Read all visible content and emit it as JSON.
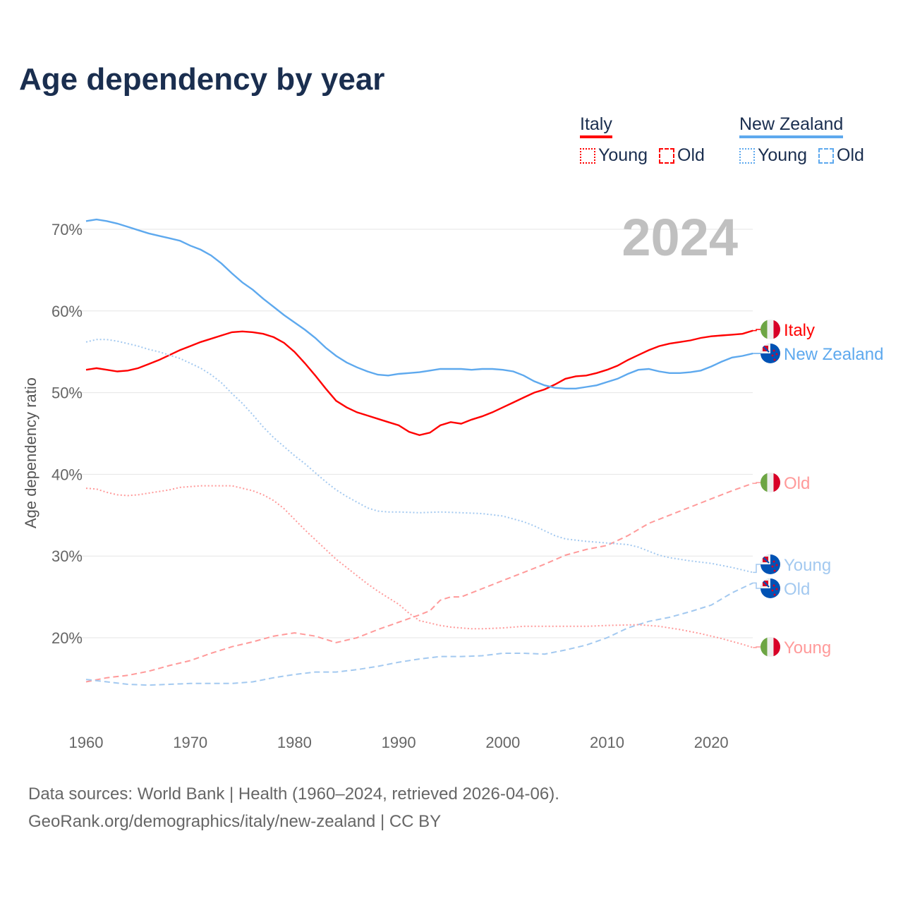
{
  "title": "Age dependency by year",
  "legend": {
    "groups": [
      {
        "name": "Italy",
        "color": "#ff0000",
        "light": "#ff9a9a",
        "items": [
          "Young",
          "Old"
        ]
      },
      {
        "name": "New Zealand",
        "color": "#5ea9ee",
        "light": "#a3c9f0",
        "items": [
          "Young",
          "Old"
        ]
      }
    ]
  },
  "footer": {
    "line1": "Data sources: World Bank | Health (1960–2024, retrieved 2026-04-06).",
    "line2": "GeoRank.org/demographics/italy/new-zealand | CC BY"
  },
  "chart_data": {
    "type": "line",
    "title": "Age dependency by year",
    "big_year_label": "2024",
    "xlabel": "",
    "ylabel": "Age dependency ratio",
    "xlim": [
      1960,
      2024
    ],
    "ylim": [
      10,
      72
    ],
    "x_ticks": [
      "1960",
      "1970",
      "1980",
      "1990",
      "2000",
      "2010",
      "2020"
    ],
    "y_ticks": [
      "20%",
      "30%",
      "40%",
      "50%",
      "60%",
      "70%"
    ],
    "grid": true,
    "series": [
      {
        "name": "Italy",
        "country": "Italy",
        "label": "Italy",
        "style": "solid",
        "color": "#ff0000",
        "x": [
          1960,
          1961,
          1962,
          1963,
          1964,
          1965,
          1966,
          1967,
          1968,
          1969,
          1970,
          1971,
          1972,
          1973,
          1974,
          1975,
          1976,
          1977,
          1978,
          1979,
          1980,
          1981,
          1982,
          1983,
          1984,
          1985,
          1986,
          1987,
          1988,
          1989,
          1990,
          1991,
          1992,
          1993,
          1994,
          1995,
          1996,
          1997,
          1998,
          1999,
          2000,
          2001,
          2002,
          2003,
          2004,
          2005,
          2006,
          2007,
          2008,
          2009,
          2010,
          2011,
          2012,
          2013,
          2014,
          2015,
          2016,
          2017,
          2018,
          2019,
          2020,
          2021,
          2022,
          2023,
          2024
        ],
        "y": [
          52.8,
          53.0,
          52.8,
          52.6,
          52.7,
          53.0,
          53.5,
          54.0,
          54.6,
          55.2,
          55.7,
          56.2,
          56.6,
          57.0,
          57.4,
          57.5,
          57.4,
          57.2,
          56.8,
          56.1,
          55.0,
          53.6,
          52.1,
          50.5,
          49.0,
          48.2,
          47.6,
          47.2,
          46.8,
          46.4,
          46.0,
          45.2,
          44.8,
          45.1,
          46.0,
          46.4,
          46.2,
          46.7,
          47.1,
          47.6,
          48.2,
          48.8,
          49.4,
          50.0,
          50.4,
          51.0,
          51.7,
          52.0,
          52.1,
          52.4,
          52.8,
          53.3,
          54.0,
          54.6,
          55.2,
          55.7,
          56.0,
          56.2,
          56.4,
          56.7,
          56.9,
          57.0,
          57.1,
          57.2,
          57.6
        ]
      },
      {
        "name": "New Zealand",
        "country": "New Zealand",
        "label": "New Zealand",
        "style": "solid",
        "color": "#5ea9ee",
        "x": [
          1960,
          1961,
          1962,
          1963,
          1964,
          1965,
          1966,
          1967,
          1968,
          1969,
          1970,
          1971,
          1972,
          1973,
          1974,
          1975,
          1976,
          1977,
          1978,
          1979,
          1980,
          1981,
          1982,
          1983,
          1984,
          1985,
          1986,
          1987,
          1988,
          1989,
          1990,
          1991,
          1992,
          1993,
          1994,
          1995,
          1996,
          1997,
          1998,
          1999,
          2000,
          2001,
          2002,
          2003,
          2004,
          2005,
          2006,
          2007,
          2008,
          2009,
          2010,
          2011,
          2012,
          2013,
          2014,
          2015,
          2016,
          2017,
          2018,
          2019,
          2020,
          2021,
          2022,
          2023,
          2024
        ],
        "y": [
          71.0,
          71.2,
          71.0,
          70.7,
          70.3,
          69.9,
          69.5,
          69.2,
          68.9,
          68.6,
          68.0,
          67.5,
          66.8,
          65.8,
          64.6,
          63.5,
          62.6,
          61.5,
          60.5,
          59.5,
          58.6,
          57.7,
          56.7,
          55.5,
          54.5,
          53.7,
          53.1,
          52.6,
          52.2,
          52.1,
          52.3,
          52.4,
          52.5,
          52.7,
          52.9,
          52.9,
          52.9,
          52.8,
          52.9,
          52.9,
          52.8,
          52.6,
          52.1,
          51.4,
          50.9,
          50.6,
          50.5,
          50.5,
          50.7,
          50.9,
          51.3,
          51.7,
          52.3,
          52.8,
          52.9,
          52.6,
          52.4,
          52.4,
          52.5,
          52.7,
          53.2,
          53.8,
          54.3,
          54.5,
          54.8
        ]
      },
      {
        "name": "Italy Old",
        "country": "Italy",
        "label": "Old",
        "style": "dashed",
        "color": "#ff9a9a",
        "x": [
          1960,
          1962,
          1964,
          1966,
          1968,
          1970,
          1972,
          1974,
          1976,
          1978,
          1980,
          1982,
          1984,
          1986,
          1988,
          1990,
          1992,
          1993,
          1994,
          1995,
          1996,
          1998,
          2000,
          2002,
          2004,
          2006,
          2008,
          2010,
          2012,
          2014,
          2016,
          2018,
          2020,
          2022,
          2024
        ],
        "y": [
          14.6,
          15.1,
          15.4,
          15.9,
          16.6,
          17.2,
          18.1,
          18.9,
          19.5,
          20.2,
          20.6,
          20.2,
          19.4,
          20.0,
          21.0,
          21.9,
          22.8,
          23.3,
          24.6,
          25.0,
          25.0,
          26.0,
          27.0,
          28.0,
          29.0,
          30.1,
          30.8,
          31.3,
          32.5,
          34.0,
          35.0,
          36.0,
          37.0,
          38.0,
          38.9
        ]
      },
      {
        "name": "New Zealand Young",
        "country": "New Zealand",
        "label": "Young",
        "style": "dotted",
        "color": "#a3c9f0",
        "x": [
          1960,
          1961,
          1962,
          1963,
          1964,
          1965,
          1966,
          1967,
          1968,
          1969,
          1970,
          1971,
          1972,
          1973,
          1974,
          1975,
          1976,
          1977,
          1978,
          1979,
          1980,
          1981,
          1982,
          1983,
          1984,
          1985,
          1986,
          1987,
          1988,
          1989,
          1990,
          1992,
          1994,
          1996,
          1998,
          2000,
          2002,
          2003,
          2004,
          2005,
          2006,
          2008,
          2010,
          2012,
          2013,
          2014,
          2015,
          2016,
          2018,
          2020,
          2022,
          2024
        ],
        "y": [
          56.2,
          56.5,
          56.5,
          56.3,
          56.0,
          55.7,
          55.3,
          55.0,
          54.6,
          54.2,
          53.6,
          53.0,
          52.2,
          51.2,
          49.9,
          48.7,
          47.3,
          45.8,
          44.5,
          43.4,
          42.3,
          41.3,
          40.2,
          39.1,
          38.1,
          37.3,
          36.6,
          35.9,
          35.5,
          35.4,
          35.4,
          35.3,
          35.4,
          35.3,
          35.2,
          34.9,
          34.2,
          33.7,
          33.1,
          32.5,
          32.1,
          31.8,
          31.6,
          31.4,
          31.1,
          30.6,
          30.1,
          29.8,
          29.4,
          29.1,
          28.6,
          28.0
        ]
      },
      {
        "name": "New Zealand Old",
        "country": "New Zealand",
        "label": "Old",
        "style": "dashed",
        "color": "#a3c9f0",
        "x": [
          1960,
          1962,
          1964,
          1966,
          1968,
          1970,
          1972,
          1974,
          1976,
          1978,
          1980,
          1982,
          1984,
          1986,
          1988,
          1990,
          1992,
          1994,
          1996,
          1998,
          2000,
          2002,
          2004,
          2006,
          2008,
          2010,
          2012,
          2014,
          2016,
          2018,
          2020,
          2022,
          2024
        ],
        "y": [
          14.9,
          14.6,
          14.3,
          14.2,
          14.3,
          14.4,
          14.4,
          14.4,
          14.6,
          15.1,
          15.5,
          15.8,
          15.8,
          16.1,
          16.5,
          17.0,
          17.4,
          17.7,
          17.7,
          17.8,
          18.1,
          18.1,
          18.0,
          18.5,
          19.1,
          20.0,
          21.2,
          22.0,
          22.5,
          23.2,
          24.0,
          25.5,
          26.7
        ]
      },
      {
        "name": "Italy Young",
        "country": "Italy",
        "label": "Young",
        "style": "dotted",
        "color": "#ff9a9a",
        "x": [
          1960,
          1961,
          1962,
          1963,
          1964,
          1965,
          1966,
          1967,
          1968,
          1969,
          1970,
          1971,
          1972,
          1973,
          1974,
          1975,
          1976,
          1977,
          1978,
          1979,
          1980,
          1981,
          1982,
          1983,
          1984,
          1985,
          1986,
          1987,
          1988,
          1989,
          1990,
          1991,
          1992,
          1993,
          1994,
          1995,
          1996,
          1997,
          1998,
          2000,
          2002,
          2005,
          2008,
          2010,
          2013,
          2015,
          2017,
          2019,
          2021,
          2023,
          2024
        ],
        "y": [
          38.3,
          38.2,
          37.8,
          37.5,
          37.4,
          37.5,
          37.7,
          37.9,
          38.1,
          38.4,
          38.5,
          38.6,
          38.6,
          38.6,
          38.6,
          38.3,
          38.0,
          37.5,
          36.8,
          35.8,
          34.5,
          33.2,
          32.0,
          30.8,
          29.6,
          28.6,
          27.6,
          26.6,
          25.7,
          24.9,
          24.1,
          23.0,
          22.1,
          21.8,
          21.5,
          21.3,
          21.2,
          21.1,
          21.1,
          21.2,
          21.4,
          21.4,
          21.4,
          21.5,
          21.6,
          21.4,
          21.0,
          20.5,
          19.9,
          19.2,
          18.8
        ]
      }
    ]
  }
}
